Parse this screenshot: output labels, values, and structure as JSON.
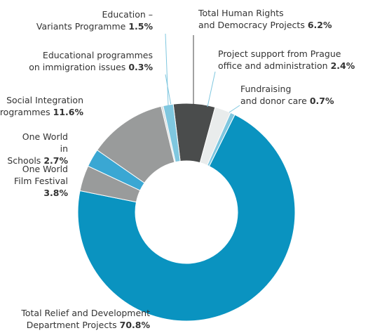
{
  "chart_data": {
    "type": "donut",
    "categories": [
      "Total Human Rights\nand Democracy Projects",
      "Project support from Prague\noffice and administration",
      "Fundraising\nand donor care",
      "Total Relief and Development\nDepartment Projects",
      "One World\nFilm Festival",
      "One World\nin Schools",
      "Social Integration\nProgrammes",
      "Educational programmes\non immigration issues",
      "Education –\nVariants Programme"
    ],
    "values": [
      6.2,
      2.4,
      0.7,
      70.8,
      3.8,
      2.7,
      11.6,
      0.3,
      1.5
    ],
    "value_labels": [
      "6.2%",
      "2.4%",
      "0.7%",
      "70.8%",
      "3.8%",
      "2.7%",
      "11.6%",
      "0.3%",
      "1.5%"
    ],
    "colors": [
      "#4a4c4c",
      "#e9ecec",
      "#7fc7df",
      "#0a93c0",
      "#999b9b",
      "#3aa7d3",
      "#999b9b",
      "#d9dcdc",
      "#7fc7df"
    ]
  }
}
